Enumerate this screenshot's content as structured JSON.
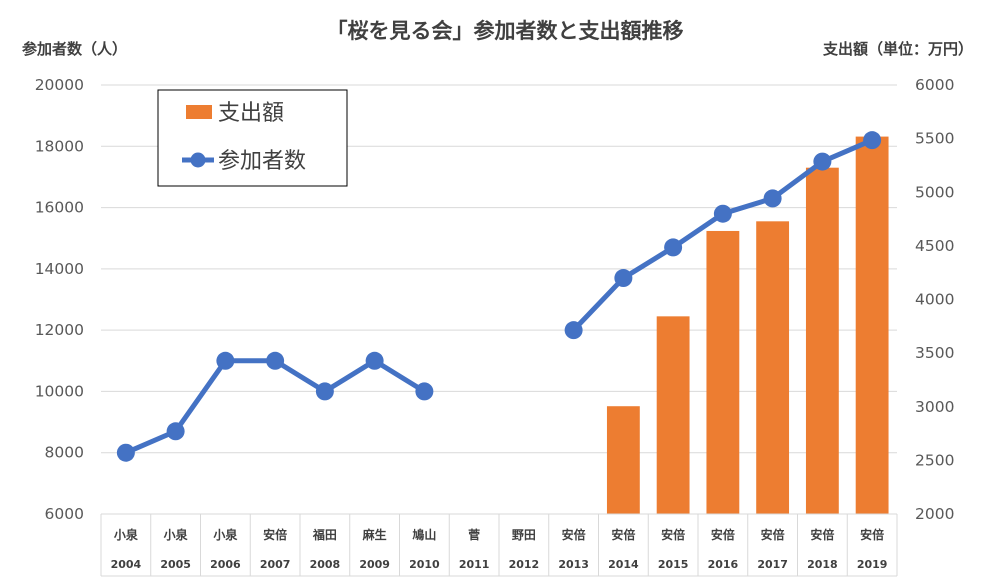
{
  "chart_data": {
    "type": "bar+line",
    "title": "「桜を見る会」参加者数と支出額推移",
    "ylabel_left": "参加者数（人）",
    "ylabel_right": "支出額（単位：万円）",
    "ylim_left": [
      6000,
      20000
    ],
    "ylim_right": [
      2000,
      6000
    ],
    "yticks_left": [
      "6000",
      "8000",
      "10000",
      "12000",
      "14000",
      "16000",
      "18000",
      "20000"
    ],
    "yticks_right": [
      "2000",
      "2500",
      "3000",
      "3500",
      "4000",
      "4500",
      "5000",
      "5500",
      "6000"
    ],
    "grid": true,
    "legend_placement": "top-left",
    "categories": [
      {
        "name": "小泉",
        "year": "2004"
      },
      {
        "name": "小泉",
        "year": "2005"
      },
      {
        "name": "小泉",
        "year": "2006"
      },
      {
        "name": "安倍",
        "year": "2007"
      },
      {
        "name": "福田",
        "year": "2008"
      },
      {
        "name": "麻生",
        "year": "2009"
      },
      {
        "name": "鳩山",
        "year": "2010"
      },
      {
        "name": "菅",
        "year": "2011"
      },
      {
        "name": "野田",
        "year": "2012"
      },
      {
        "name": "安倍",
        "year": "2013"
      },
      {
        "name": "安倍",
        "year": "2014"
      },
      {
        "name": "安倍",
        "year": "2015"
      },
      {
        "name": "安倍",
        "year": "2016"
      },
      {
        "name": "安倍",
        "year": "2017"
      },
      {
        "name": "安倍",
        "year": "2018"
      },
      {
        "name": "安倍",
        "year": "2019"
      }
    ],
    "series": [
      {
        "name": "支出額",
        "type": "bar",
        "axis": "right",
        "color": "#ED7D31",
        "values": [
          null,
          null,
          null,
          null,
          null,
          null,
          null,
          null,
          null,
          null,
          3005,
          3843,
          4639,
          4729,
          5229,
          5519
        ]
      },
      {
        "name": "参加者数",
        "type": "line",
        "axis": "left",
        "color": "#4472C4",
        "values": [
          8000,
          8700,
          11000,
          11000,
          10000,
          11000,
          10000,
          null,
          null,
          12000,
          13700,
          14700,
          15800,
          16300,
          17500,
          18200
        ]
      }
    ]
  }
}
